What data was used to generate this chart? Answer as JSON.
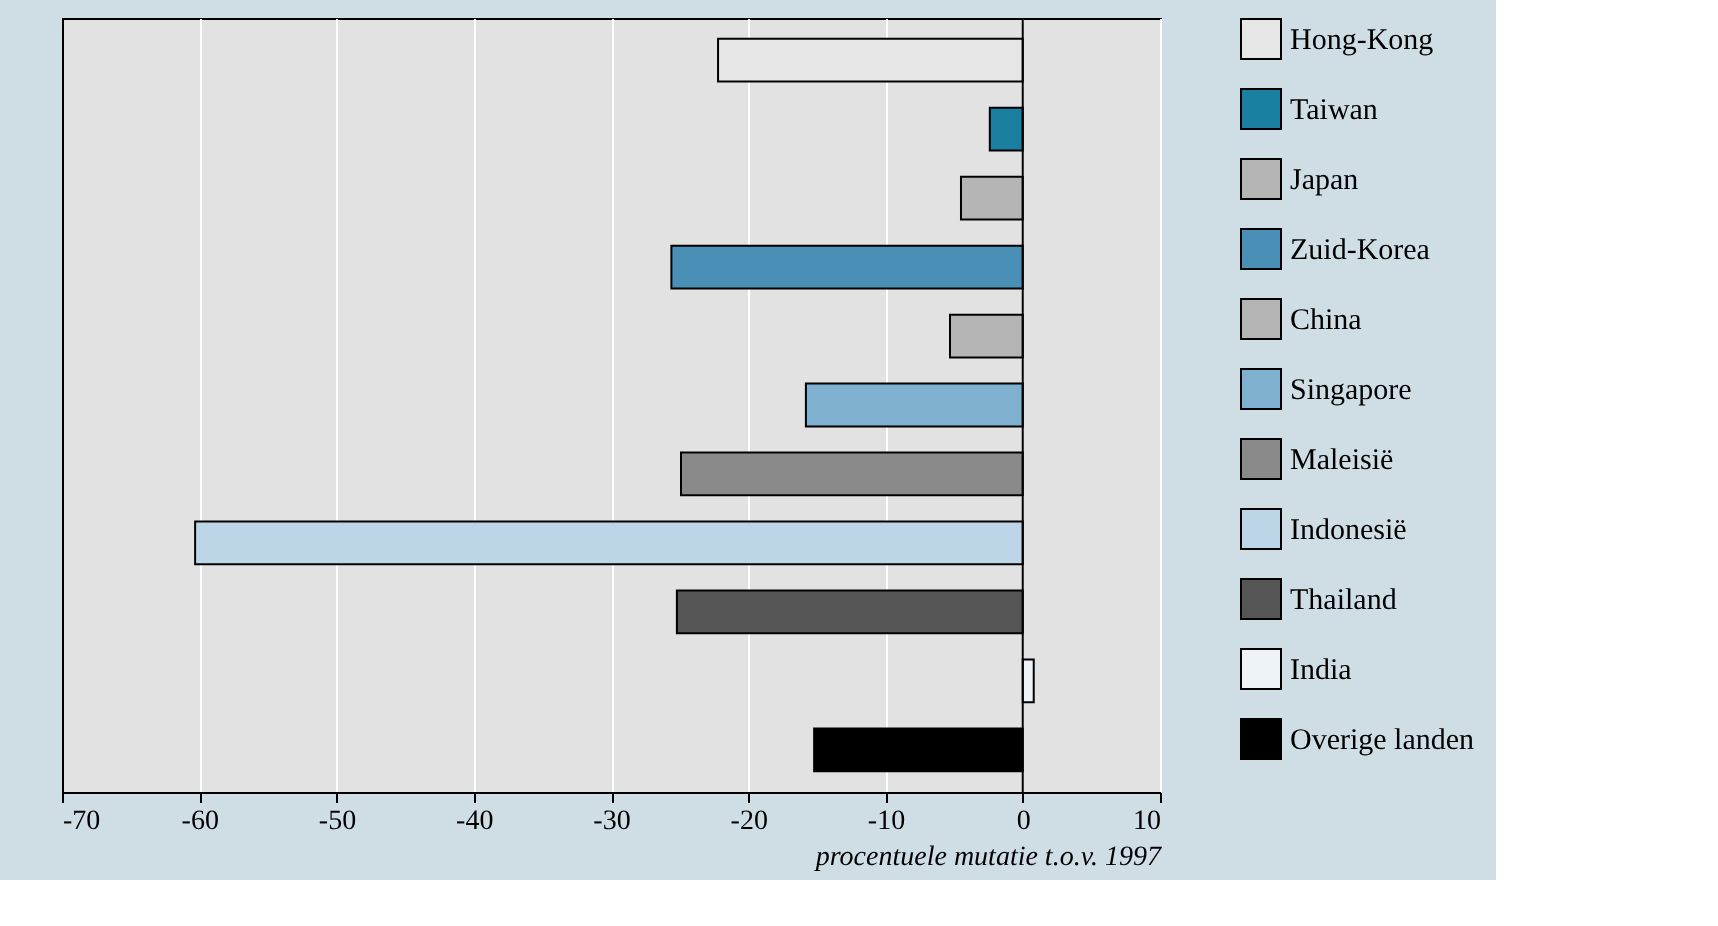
{
  "chart_data": {
    "type": "bar",
    "orientation": "horizontal",
    "xlabel": "procentuele mutatie t.o.v. 1997",
    "categories": [
      null,
      null,
      null,
      null,
      null,
      null,
      null,
      null,
      null,
      null,
      null
    ],
    "series": [
      {
        "name": "Hong-Kong",
        "color": "#e6e6e6",
        "values": [
          -22.2,
          null,
          null,
          null,
          null,
          null,
          null,
          null,
          null,
          null,
          null
        ]
      },
      {
        "name": "Taiwan",
        "color": "#1a7fa0",
        "values": [
          null,
          -2.4,
          null,
          null,
          null,
          null,
          null,
          null,
          null,
          null,
          null
        ]
      },
      {
        "name": "Japan",
        "color": "#b5b5b5",
        "values": [
          null,
          null,
          -4.5,
          null,
          null,
          null,
          null,
          null,
          null,
          null,
          null
        ]
      },
      {
        "name": "Zuid-Korea",
        "color": "#4a8fb5",
        "values": [
          null,
          null,
          null,
          -25.6,
          null,
          null,
          null,
          null,
          null,
          null,
          null
        ]
      },
      {
        "name": "China",
        "color": "#b4b4b4",
        "values": [
          null,
          null,
          null,
          null,
          -5.3,
          null,
          null,
          null,
          null,
          null,
          null
        ]
      },
      {
        "name": "Singapore",
        "color": "#7fb0d0",
        "values": [
          null,
          null,
          null,
          null,
          null,
          -15.8,
          null,
          null,
          null,
          null,
          null
        ]
      },
      {
        "name": "Maleisië",
        "color": "#8a8a8a",
        "values": [
          null,
          null,
          null,
          null,
          null,
          null,
          -24.9,
          null,
          null,
          null,
          null
        ]
      },
      {
        "name": "Indonesië",
        "color": "#bcd6e8",
        "values": [
          null,
          null,
          null,
          null,
          null,
          null,
          null,
          -60.3,
          null,
          null,
          null
        ]
      },
      {
        "name": "Thailand",
        "color": "#555555",
        "values": [
          null,
          null,
          null,
          null,
          null,
          null,
          null,
          null,
          -25.2,
          null,
          null
        ]
      },
      {
        "name": "India",
        "color": "#eef3f8",
        "values": [
          null,
          null,
          null,
          null,
          null,
          null,
          null,
          null,
          null,
          0.8,
          null
        ]
      },
      {
        "name": "Overige landen",
        "color": "#000000",
        "values": [
          null,
          null,
          null,
          null,
          null,
          null,
          null,
          null,
          null,
          null,
          -15.2
        ]
      }
    ],
    "xlim": [
      -70,
      10
    ],
    "xticks": [
      -70,
      -60,
      -50,
      -40,
      -30,
      -20,
      -10,
      0,
      10
    ],
    "grid": "x",
    "legend": "right",
    "tick_labels": "x"
  }
}
